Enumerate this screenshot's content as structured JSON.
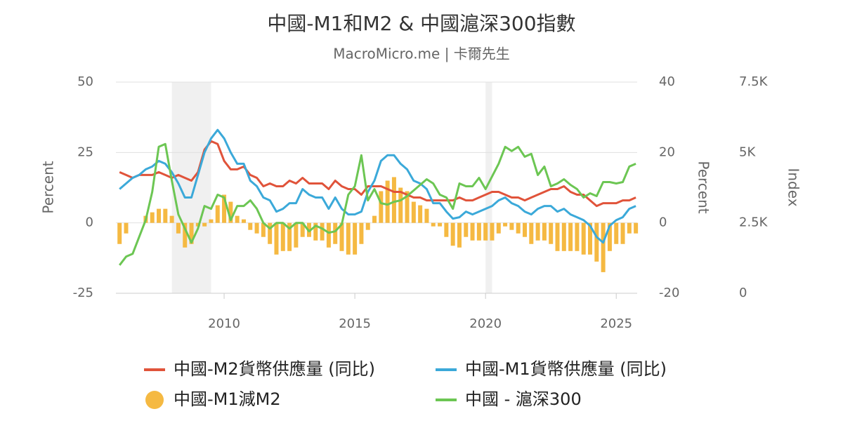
{
  "chart_data": {
    "type": "combo",
    "title": "中國-M1和M2 & 中國滬深300指數",
    "subtitle": "MacroMicro.me | 卡爾先生",
    "y_label": "Percent",
    "y2_label": "Percent",
    "y3_label": "Index",
    "x": [
      2006,
      2006.25,
      2006.5,
      2006.75,
      2007,
      2007.25,
      2007.5,
      2007.75,
      2008,
      2008.25,
      2008.5,
      2008.75,
      2009,
      2009.25,
      2009.5,
      2009.75,
      2010,
      2010.25,
      2010.5,
      2010.75,
      2011,
      2011.25,
      2011.5,
      2011.75,
      2012,
      2012.25,
      2012.5,
      2012.75,
      2013,
      2013.25,
      2013.5,
      2013.75,
      2014,
      2014.25,
      2014.5,
      2014.75,
      2015,
      2015.25,
      2015.5,
      2015.75,
      2016,
      2016.25,
      2016.5,
      2016.75,
      2017,
      2017.25,
      2017.5,
      2017.75,
      2018,
      2018.25,
      2018.5,
      2018.75,
      2019,
      2019.25,
      2019.5,
      2019.75,
      2020,
      2020.25,
      2020.5,
      2020.75,
      2021,
      2021.25,
      2021.5,
      2021.75,
      2022,
      2022.25,
      2022.5,
      2022.75,
      2023,
      2023.25,
      2023.5,
      2023.75,
      2024,
      2024.25,
      2024.5,
      2024.75,
      2025,
      2025.25,
      2025.5,
      2025.75
    ],
    "xlim": [
      2005.86,
      2025.8
    ],
    "xticks": [
      2010,
      2015,
      2020,
      2025
    ],
    "ylim": [
      -25,
      50
    ],
    "yticks": [
      -25,
      0,
      25,
      50
    ],
    "y2lim": [
      -20,
      40
    ],
    "y2ticks": [
      -20,
      0,
      20,
      40
    ],
    "y3lim": [
      0,
      7500
    ],
    "y3ticks": [
      0,
      {
        "value": 2500,
        "label": "2.5K"
      },
      {
        "value": 5000,
        "label": "5K"
      },
      {
        "value": 7500,
        "label": "7.5K"
      }
    ],
    "grid": true,
    "shaded_regions": [
      [
        2008.0,
        2009.5
      ],
      [
        2020.0,
        2020.25
      ]
    ],
    "series": [
      {
        "name": "中國-M2貨幣供應量 (同比)",
        "kind": "line",
        "axis": "y",
        "color": "#e0533a",
        "values": [
          18,
          17,
          16,
          17,
          17,
          17,
          18,
          17,
          16,
          17,
          16,
          15,
          18,
          26,
          29,
          28,
          22,
          19,
          19,
          20,
          17,
          16,
          13,
          14,
          13,
          13,
          15,
          14,
          16,
          14,
          14,
          14,
          12,
          15,
          13,
          12,
          12,
          10,
          13,
          13,
          13,
          12,
          11,
          11,
          10,
          9,
          9,
          8,
          8,
          8,
          8,
          8,
          9,
          8,
          8,
          9,
          10,
          11,
          11,
          10,
          9,
          9,
          8,
          9,
          10,
          11,
          12,
          12,
          13,
          11,
          10,
          10,
          8,
          6,
          7,
          7,
          7,
          8,
          8,
          9
        ]
      },
      {
        "name": "中國-M1貨幣供應量 (同比)",
        "kind": "line",
        "axis": "y",
        "color": "#3ba9d9",
        "values": [
          12,
          14,
          16,
          17,
          19,
          20,
          22,
          21,
          18,
          14,
          9,
          9,
          17,
          25,
          30,
          33,
          30,
          25,
          21,
          21,
          15,
          13,
          9,
          8,
          4,
          5,
          7,
          7,
          12,
          10,
          9,
          9,
          5,
          9,
          5,
          3,
          3,
          4,
          11,
          15,
          22,
          24,
          24,
          21,
          19,
          15,
          14,
          12,
          7,
          7,
          4,
          1.5,
          2,
          4,
          3,
          4,
          5,
          6,
          8,
          9,
          7,
          6,
          4,
          3,
          5,
          6,
          6,
          4,
          5,
          3,
          2,
          1,
          -1,
          -5,
          -7,
          -1,
          1,
          2,
          5,
          6
        ]
      },
      {
        "name": "中國-M1減M2",
        "kind": "bar",
        "axis": "y2",
        "color": "#f5b942",
        "values": [
          -6,
          -3,
          0,
          0,
          2,
          3,
          4,
          4,
          2,
          -3,
          -7,
          -6,
          -1,
          -1,
          1,
          5,
          8,
          6,
          2,
          1,
          -2,
          -3,
          -4,
          -6,
          -9,
          -8,
          -8,
          -7,
          -4,
          -4,
          -5,
          -5,
          -7,
          -6,
          -8,
          -9,
          -9,
          -6,
          -2,
          2,
          9,
          12,
          13,
          10,
          9,
          6,
          5,
          4,
          -1,
          -1,
          -4,
          -6.5,
          -7,
          -4,
          -5,
          -5,
          -5,
          -5,
          -3,
          -1,
          -2,
          -3,
          -4,
          -6,
          -5,
          -5,
          -6,
          -8,
          -8,
          -8,
          -8,
          -9,
          -9,
          -11,
          -14,
          -8,
          -6,
          -6,
          -3,
          -3
        ]
      },
      {
        "name": "中國 - 滬深300",
        "kind": "line",
        "axis": "y3",
        "color": "#6cc653",
        "values": [
          1000,
          1300,
          1400,
          2000,
          2600,
          3600,
          5200,
          5300,
          4000,
          2800,
          2300,
          1800,
          2300,
          3100,
          3000,
          3500,
          3400,
          2600,
          3100,
          3100,
          3300,
          3000,
          2500,
          2300,
          2500,
          2500,
          2300,
          2500,
          2500,
          2200,
          2400,
          2300,
          2150,
          2200,
          2450,
          3500,
          3800,
          4900,
          3300,
          3700,
          3200,
          3150,
          3250,
          3300,
          3450,
          3650,
          3850,
          4050,
          3900,
          3500,
          3400,
          3000,
          3900,
          3800,
          3800,
          4100,
          3700,
          4150,
          4600,
          5200,
          5050,
          5200,
          4850,
          4950,
          4200,
          4500,
          3800,
          3900,
          4050,
          3850,
          3700,
          3400,
          3550,
          3450,
          3950,
          3950,
          3900,
          3950,
          4500,
          4600
        ]
      }
    ]
  }
}
